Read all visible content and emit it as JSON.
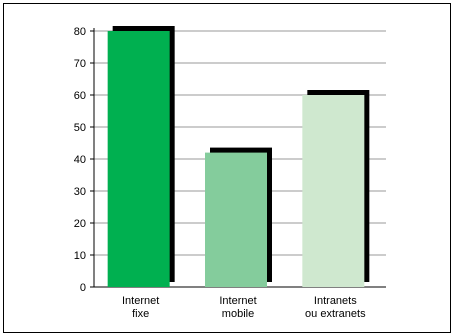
{
  "chart_data": {
    "type": "bar",
    "categories": [
      [
        "Internet",
        "fixe"
      ],
      [
        "Internet",
        "mobile"
      ],
      [
        "Intranets",
        "ou extranets"
      ]
    ],
    "values": [
      80,
      42,
      60
    ],
    "ylim": [
      0,
      80
    ],
    "yticks": [
      0,
      10,
      20,
      30,
      40,
      50,
      60,
      70,
      80
    ],
    "grid": true,
    "bar_colors": [
      "#00b050",
      "#84cc9c",
      "#cfe8cf"
    ],
    "shadow_color": "#000000",
    "grid_color": "#999999"
  }
}
